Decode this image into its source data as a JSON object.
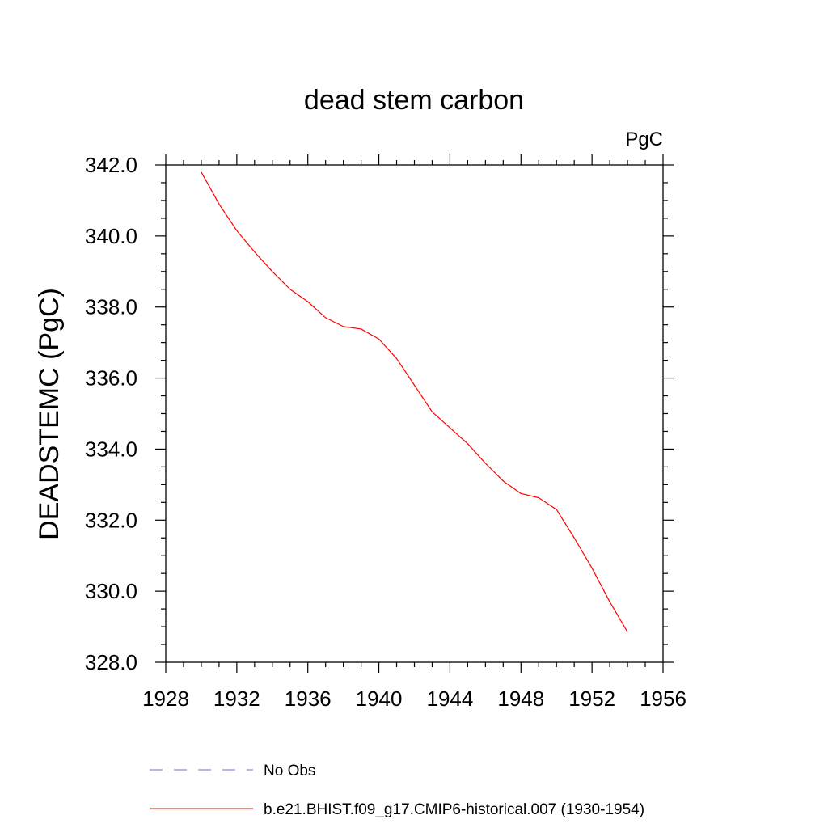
{
  "chart_data": {
    "type": "line",
    "title": "dead stem carbon",
    "units_label": "PgC",
    "ylabel": "DEADSTEMC  (PgC)",
    "xlabel": "",
    "xlim": [
      1928,
      1956
    ],
    "ylim": [
      328,
      342
    ],
    "x_ticks": [
      1928,
      1932,
      1936,
      1940,
      1944,
      1948,
      1952,
      1956
    ],
    "x_tick_labels": [
      "1928",
      "1932",
      "1936",
      "1940",
      "1944",
      "1948",
      "1952",
      "1956"
    ],
    "y_ticks": [
      328,
      330,
      332,
      334,
      336,
      338,
      340,
      342
    ],
    "y_tick_labels": [
      "328.0",
      "330.0",
      "332.0",
      "334.0",
      "336.0",
      "338.0",
      "340.0",
      "342.0"
    ],
    "grid": false,
    "series": [
      {
        "name": "b.e21.BHIST.f09_g17.CMIP6-historical.007 (1930-1954)",
        "color": "#ff0000",
        "dash": "solid",
        "x": [
          1930,
          1931,
          1932,
          1933,
          1934,
          1935,
          1936,
          1937,
          1938,
          1939,
          1940,
          1941,
          1942,
          1943,
          1944,
          1945,
          1946,
          1947,
          1948,
          1949,
          1950,
          1951,
          1952,
          1953,
          1954
        ],
        "y": [
          341.8,
          340.9,
          340.15,
          339.55,
          339.0,
          338.5,
          338.15,
          337.7,
          337.45,
          337.38,
          337.1,
          336.55,
          335.8,
          335.05,
          334.6,
          334.15,
          333.6,
          333.1,
          332.75,
          332.63,
          332.3,
          331.5,
          330.65,
          329.7,
          328.85
        ]
      }
    ],
    "legend": [
      {
        "label": "No Obs",
        "color": "#6a6ad0",
        "dash": "dashed"
      },
      {
        "label": "b.e21.BHIST.f09_g17.CMIP6-historical.007 (1930-1954)",
        "color": "#ff0000",
        "dash": "solid"
      }
    ],
    "legend_position": "bottom"
  }
}
